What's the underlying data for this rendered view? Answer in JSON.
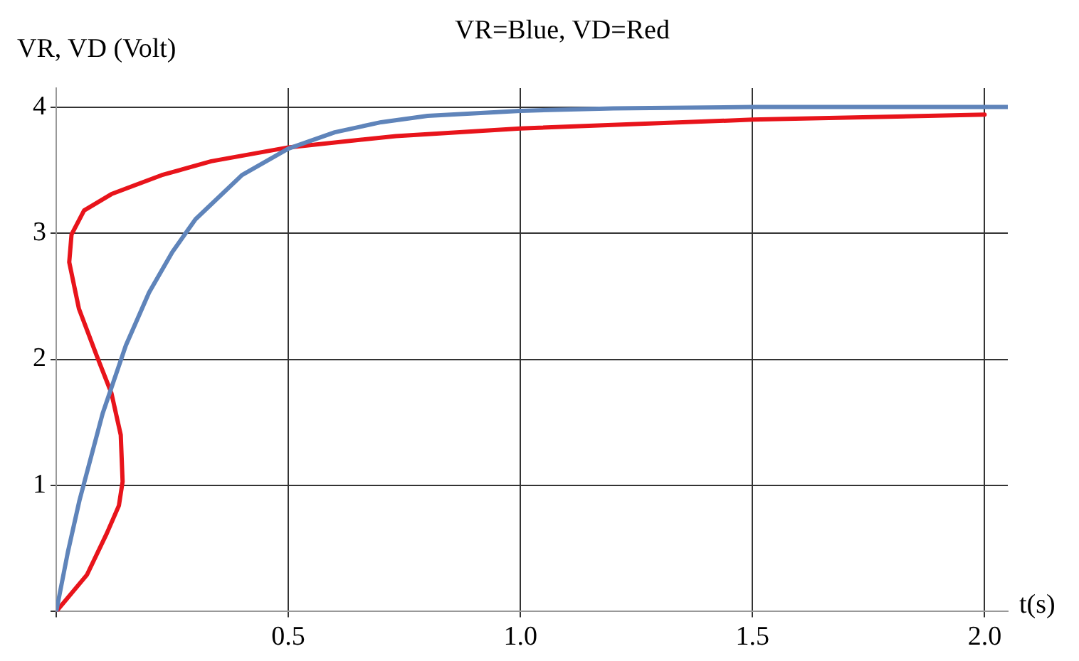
{
  "chart_data": {
    "type": "line",
    "title": "VR=Blue, VD=Red",
    "xlabel": "t(s)",
    "ylabel": "VR, VD (Volt)",
    "xlim": [
      0,
      2.05
    ],
    "ylim": [
      0,
      4.15
    ],
    "xticks": [
      {
        "value": 0,
        "label": null
      },
      0.5,
      {
        "value": 1,
        "label": "1.0"
      },
      1.5,
      {
        "value": 2,
        "label": "2.0"
      }
    ],
    "yticks": [
      {
        "value": 0,
        "label": null
      },
      1,
      2,
      3,
      4
    ],
    "grid": true,
    "legend": false,
    "marker": "none",
    "line_style": "solid",
    "series": [
      {
        "color": "#5f84ba",
        "x": [
          0,
          0.025,
          0.05,
          0.1,
          0.15,
          0.2,
          0.25,
          0.3,
          0.4,
          0.5,
          0.6,
          0.7,
          0.8,
          1.0,
          1.2,
          1.5,
          2.0,
          2.05
        ],
        "values": [
          0,
          0.47,
          0.88,
          1.57,
          2.11,
          2.53,
          2.85,
          3.11,
          3.46,
          3.67,
          3.8,
          3.88,
          3.93,
          3.97,
          3.99,
          4.0,
          4.0,
          4.0
        ]
      },
      {
        "color": "#e8141b",
        "x": [
          0,
          0.066,
          0.109,
          0.135,
          0.143,
          0.139,
          0.119,
          0.087,
          0.049,
          0.028,
          0.033,
          0.06,
          0.119,
          0.227,
          0.334,
          0.5,
          0.732,
          1.0,
          1.5,
          2.0
        ],
        "values": [
          0,
          0.29,
          0.62,
          0.84,
          1.03,
          1.4,
          1.73,
          2.03,
          2.4,
          2.77,
          2.99,
          3.18,
          3.31,
          3.46,
          3.57,
          3.68,
          3.77,
          3.83,
          3.9,
          3.94
        ]
      }
    ]
  }
}
